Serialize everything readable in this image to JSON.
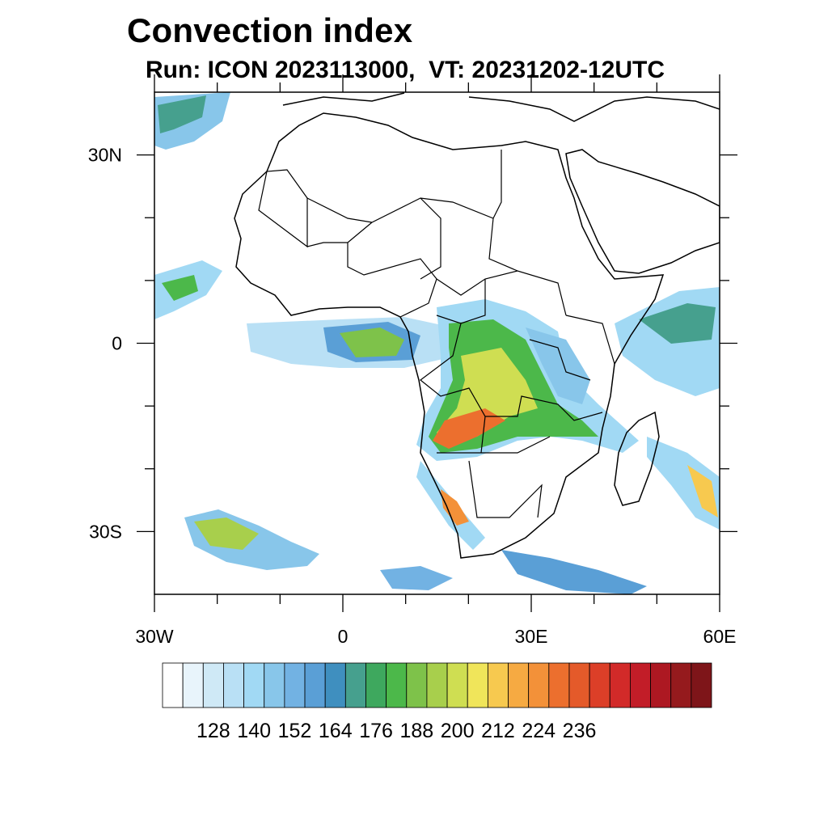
{
  "header": {
    "title": "Convection index",
    "subtitle": "Run: ICON 2023113000,  VT: 20231202-12UTC"
  },
  "map": {
    "region": "Africa",
    "lon_range": [
      -30,
      60
    ],
    "lat_range": [
      -40,
      40
    ],
    "lon_ticks": [
      {
        "value": -30,
        "label": "30W"
      },
      {
        "value": 0,
        "label": "0"
      },
      {
        "value": 30,
        "label": "30E"
      },
      {
        "value": 60,
        "label": "60E"
      }
    ],
    "lat_ticks": [
      {
        "value": 30,
        "label": "30N"
      },
      {
        "value": 0,
        "label": "0"
      },
      {
        "value": -30,
        "label": "30S"
      }
    ],
    "minor_lon_ticks": [
      -20,
      -10,
      10,
      20,
      40,
      50
    ],
    "minor_lat_ticks": [
      20,
      10,
      -10,
      -20
    ]
  },
  "colorbar": {
    "labels": [
      "128",
      "140",
      "152",
      "164",
      "176",
      "188",
      "200",
      "212",
      "224",
      "236"
    ],
    "colors": [
      "#ffffff",
      "#e8f4fb",
      "#cfe9f6",
      "#b9e0f5",
      "#a1d9f4",
      "#88c6ea",
      "#72b2e3",
      "#5a9fd6",
      "#3f8fbf",
      "#46a08e",
      "#3ea85e",
      "#4cb84a",
      "#7ec24a",
      "#a8cf4c",
      "#cfde52",
      "#f0e55a",
      "#f7c94f",
      "#f6aa42",
      "#f39139",
      "#ec6f2e",
      "#e45a2a",
      "#dc3f28",
      "#d22a29",
      "#c21d28",
      "#ad1822",
      "#951a1d",
      "#7e1519"
    ]
  }
}
